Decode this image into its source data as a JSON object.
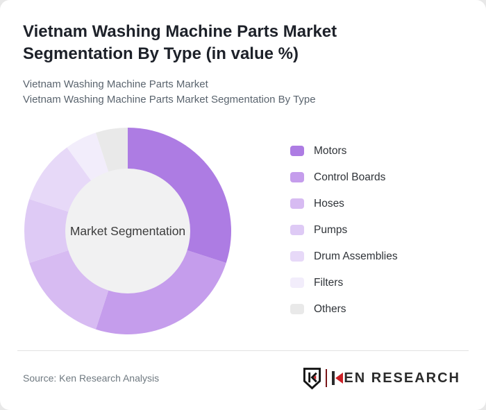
{
  "header": {
    "title": "Vietnam Washing Machine Parts Market Segmentation By Type (in value %)",
    "subtitle_line1": "Vietnam Washing Machine Parts Market",
    "subtitle_line2": "Vietnam Washing Machine Parts Market Segmentation By Type"
  },
  "chart_data": {
    "type": "pie",
    "variant": "donut",
    "title": "Vietnam Washing Machine Parts Market Segmentation By Type (in value %)",
    "unit": "value %",
    "center_label": "Market Segmentation",
    "legend_position": "right",
    "start_angle_deg": 0,
    "direction": "clockwise",
    "inner_radius_ratio": 0.6,
    "hole_color": "#f1f1f2",
    "categories": [
      "Motors",
      "Control Boards",
      "Hoses",
      "Pumps",
      "Drum Assemblies",
      "Filters",
      "Others"
    ],
    "values": [
      30,
      25,
      15,
      10,
      10,
      5,
      5
    ],
    "colors": [
      "#ad7ce3",
      "#c59dec",
      "#d7bbf2",
      "#decaf5",
      "#e7d9f8",
      "#f2edfb",
      "#e9e9e9"
    ]
  },
  "footer": {
    "source": "Source: Ken Research Analysis",
    "logo": {
      "brand": "KEN RESEARCH",
      "brand_rest": "EN RESEARCH",
      "accent": "#cb2026"
    }
  }
}
